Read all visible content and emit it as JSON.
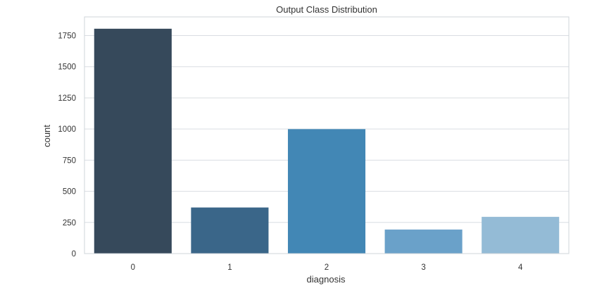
{
  "chart_data": {
    "type": "bar",
    "title": "Output Class Distribution",
    "xlabel": "diagnosis",
    "ylabel": "count",
    "categories": [
      "0",
      "1",
      "2",
      "3",
      "4"
    ],
    "values": [
      1805,
      370,
      999,
      193,
      295
    ],
    "ylim": [
      0,
      1900
    ],
    "yticks": [
      0,
      250,
      500,
      750,
      1000,
      1250,
      1500,
      1750
    ],
    "bar_colors": [
      "#36495b",
      "#3a6689",
      "#4287b5",
      "#6aa1c9",
      "#94bbd6"
    ],
    "grid": true,
    "legend": false
  }
}
